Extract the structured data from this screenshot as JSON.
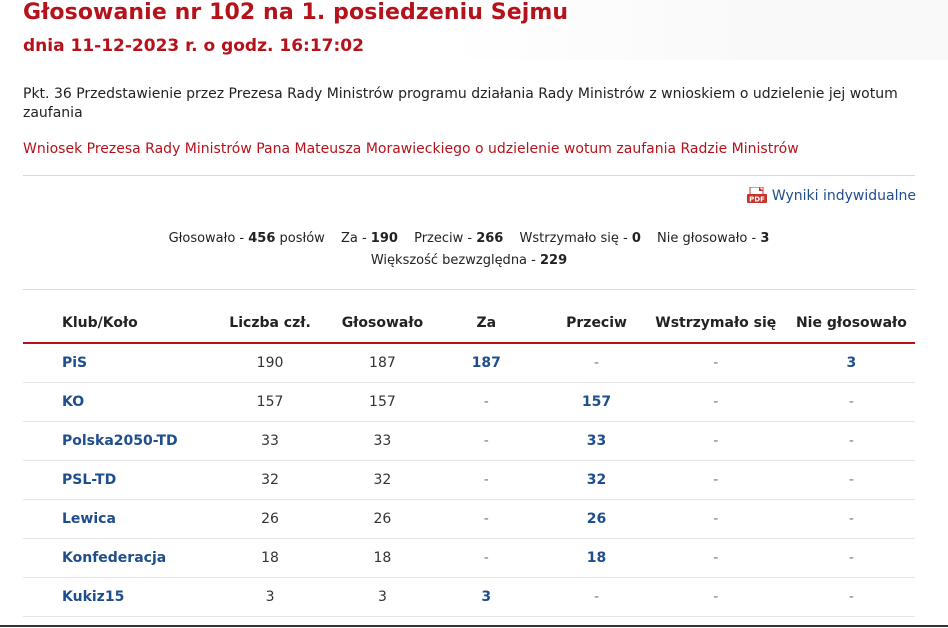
{
  "header": {
    "title": "Głosowanie nr 102 na 1. posiedzeniu Sejmu",
    "subtitle": "dnia 11-12-2023 r. o godz. 16:17:02"
  },
  "agenda_item": "Pkt. 36 Przedstawienie przez Prezesa Rady Ministrów programu działania Rady Ministrów z wnioskiem o udzielenie jej wotum zaufania",
  "motion_link": "Wniosek Prezesa Rady Ministrów Pana Mateusza Morawieckiego o udzielenie wotum zaufania Radzie Ministrów",
  "pdf_link": {
    "icon": "pdf-icon",
    "icon_text": "PDF",
    "label": "Wyniki indywidualne"
  },
  "summary": {
    "voted_label": "Głosowało -",
    "voted_value": "456",
    "voted_suffix": "posłów",
    "for_label": "Za -",
    "for_value": "190",
    "against_label": "Przeciw -",
    "against_value": "266",
    "abstain_label": "Wstrzymało się -",
    "abstain_value": "0",
    "absent_label": "Nie głosowało -",
    "absent_value": "3",
    "majority_label": "Większość bezwzględna -",
    "majority_value": "229"
  },
  "table": {
    "headers": [
      "Klub/Koło",
      "Liczba czł.",
      "Głosowało",
      "Za",
      "Przeciw",
      "Wstrzymało się",
      "Nie głosowało"
    ],
    "rows": [
      {
        "club": "PiS",
        "members": "190",
        "voted": "187",
        "for": "187",
        "against": "-",
        "abstain": "-",
        "absent": "3"
      },
      {
        "club": "KO",
        "members": "157",
        "voted": "157",
        "for": "-",
        "against": "157",
        "abstain": "-",
        "absent": "-"
      },
      {
        "club": "Polska2050-TD",
        "members": "33",
        "voted": "33",
        "for": "-",
        "against": "33",
        "abstain": "-",
        "absent": "-"
      },
      {
        "club": "PSL-TD",
        "members": "32",
        "voted": "32",
        "for": "-",
        "against": "32",
        "abstain": "-",
        "absent": "-"
      },
      {
        "club": "Lewica",
        "members": "26",
        "voted": "26",
        "for": "-",
        "against": "26",
        "abstain": "-",
        "absent": "-"
      },
      {
        "club": "Konfederacja",
        "members": "18",
        "voted": "18",
        "for": "-",
        "against": "18",
        "abstain": "-",
        "absent": "-"
      },
      {
        "club": "Kukiz15",
        "members": "3",
        "voted": "3",
        "for": "3",
        "against": "-",
        "abstain": "-",
        "absent": "-"
      }
    ]
  },
  "colors": {
    "accent_red": "#b5121b",
    "link_blue": "#1f4e8c"
  }
}
